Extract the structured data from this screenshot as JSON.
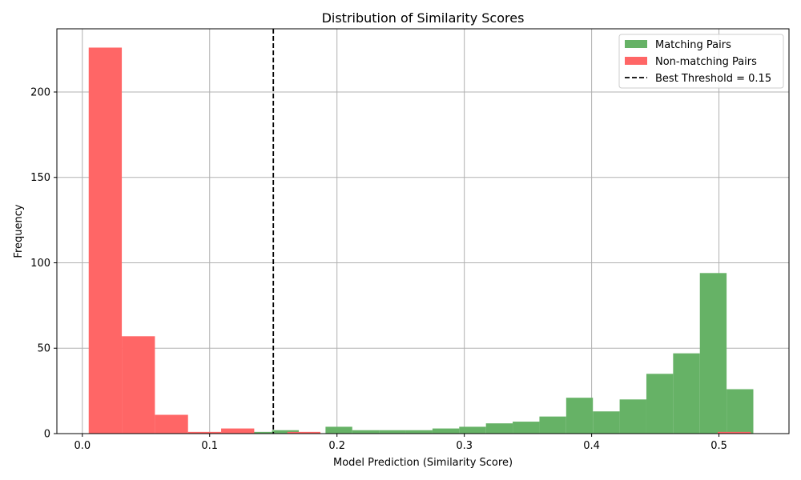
{
  "chart_data": {
    "type": "bar",
    "title": "Distribution of Similarity Scores",
    "xlabel": "Model Prediction (Similarity Score)",
    "ylabel": "Frequency",
    "xlim": [
      -0.02,
      0.555
    ],
    "ylim": [
      0,
      237
    ],
    "xticks": [
      0.0,
      0.1,
      0.2,
      0.3,
      0.4,
      0.5
    ],
    "xtick_labels": [
      "0.0",
      "0.1",
      "0.2",
      "0.3",
      "0.4",
      "0.5"
    ],
    "yticks": [
      0,
      50,
      100,
      150,
      200
    ],
    "ytick_labels": [
      "0",
      "50",
      "100",
      "150",
      "200"
    ],
    "grid": true,
    "legend_position": "top-right",
    "colors": {
      "matching": "#66b266",
      "nonmatching": "#ff6666",
      "threshold": "#000000",
      "grid": "#b0b0b0"
    },
    "series": [
      {
        "name": "Matching Pairs",
        "bins": [
          {
            "x0": 0.128,
            "x1": 0.149,
            "count": 1
          },
          {
            "x0": 0.149,
            "x1": 0.17,
            "count": 2
          },
          {
            "x0": 0.17,
            "x1": 0.191,
            "count": 0
          },
          {
            "x0": 0.191,
            "x1": 0.212,
            "count": 4
          },
          {
            "x0": 0.212,
            "x1": 0.233,
            "count": 2
          },
          {
            "x0": 0.233,
            "x1": 0.254,
            "count": 2
          },
          {
            "x0": 0.254,
            "x1": 0.275,
            "count": 2
          },
          {
            "x0": 0.275,
            "x1": 0.296,
            "count": 3
          },
          {
            "x0": 0.296,
            "x1": 0.317,
            "count": 4
          },
          {
            "x0": 0.317,
            "x1": 0.338,
            "count": 6
          },
          {
            "x0": 0.338,
            "x1": 0.359,
            "count": 7
          },
          {
            "x0": 0.359,
            "x1": 0.38,
            "count": 10
          },
          {
            "x0": 0.38,
            "x1": 0.401,
            "count": 21
          },
          {
            "x0": 0.401,
            "x1": 0.422,
            "count": 13
          },
          {
            "x0": 0.422,
            "x1": 0.443,
            "count": 20
          },
          {
            "x0": 0.443,
            "x1": 0.464,
            "count": 35
          },
          {
            "x0": 0.464,
            "x1": 0.485,
            "count": 47
          },
          {
            "x0": 0.485,
            "x1": 0.506,
            "count": 94
          },
          {
            "x0": 0.506,
            "x1": 0.527,
            "count": 26
          }
        ]
      },
      {
        "name": "Non-matching Pairs",
        "bins": [
          {
            "x0": 0.005,
            "x1": 0.031,
            "count": 226
          },
          {
            "x0": 0.031,
            "x1": 0.057,
            "count": 57
          },
          {
            "x0": 0.057,
            "x1": 0.083,
            "count": 11
          },
          {
            "x0": 0.083,
            "x1": 0.109,
            "count": 1
          },
          {
            "x0": 0.109,
            "x1": 0.135,
            "count": 3
          },
          {
            "x0": 0.135,
            "x1": 0.161,
            "count": 0
          },
          {
            "x0": 0.161,
            "x1": 0.187,
            "count": 1
          },
          {
            "x0": 0.187,
            "x1": 0.213,
            "count": 0
          },
          {
            "x0": 0.213,
            "x1": 0.239,
            "count": 0
          },
          {
            "x0": 0.239,
            "x1": 0.265,
            "count": 0
          },
          {
            "x0": 0.265,
            "x1": 0.291,
            "count": 0
          },
          {
            "x0": 0.291,
            "x1": 0.317,
            "count": 0
          },
          {
            "x0": 0.317,
            "x1": 0.343,
            "count": 0
          },
          {
            "x0": 0.343,
            "x1": 0.369,
            "count": 0
          },
          {
            "x0": 0.369,
            "x1": 0.395,
            "count": 0
          },
          {
            "x0": 0.395,
            "x1": 0.421,
            "count": 0
          },
          {
            "x0": 0.421,
            "x1": 0.447,
            "count": 0
          },
          {
            "x0": 0.447,
            "x1": 0.473,
            "count": 0
          },
          {
            "x0": 0.473,
            "x1": 0.499,
            "count": 0
          },
          {
            "x0": 0.499,
            "x1": 0.525,
            "count": 1
          }
        ]
      }
    ],
    "threshold": {
      "name": "Best Threshold = 0.15",
      "value": 0.15
    }
  }
}
